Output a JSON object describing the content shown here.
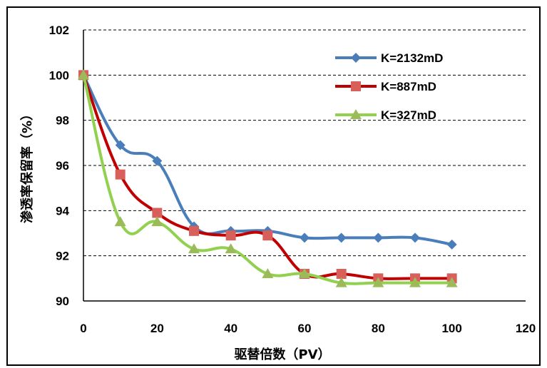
{
  "chart_data": {
    "type": "line",
    "title": "",
    "xlabel": "驱替倍数（PV）",
    "ylabel": "渗透率保留率（%）",
    "xlim": [
      0,
      120
    ],
    "ylim": [
      90,
      102
    ],
    "xticks": [
      0,
      20,
      40,
      60,
      80,
      100,
      120
    ],
    "yticks": [
      90,
      92,
      94,
      96,
      98,
      100,
      102
    ],
    "grid": "horizontal dashed",
    "legend_position": "top-right",
    "x": [
      0,
      10,
      20,
      30,
      40,
      50,
      60,
      70,
      80,
      90,
      100
    ],
    "series": [
      {
        "name": "K=2132mD",
        "color": "#4a7ebb",
        "marker": "diamond",
        "values": [
          100,
          96.9,
          96.2,
          93.3,
          93.1,
          93.1,
          92.8,
          92.8,
          92.8,
          92.8,
          92.5
        ]
      },
      {
        "name": "K=887mD",
        "color": "#c00000",
        "marker": "square",
        "values": [
          100,
          95.6,
          93.9,
          93.1,
          92.9,
          92.9,
          91.2,
          91.2,
          91.0,
          91.0,
          91.0
        ]
      },
      {
        "name": "K=327mD",
        "color": "#92d050",
        "marker": "triangle",
        "values": [
          100,
          93.5,
          93.5,
          92.3,
          92.3,
          91.2,
          91.2,
          90.8,
          90.8,
          90.8,
          90.8
        ]
      }
    ]
  }
}
